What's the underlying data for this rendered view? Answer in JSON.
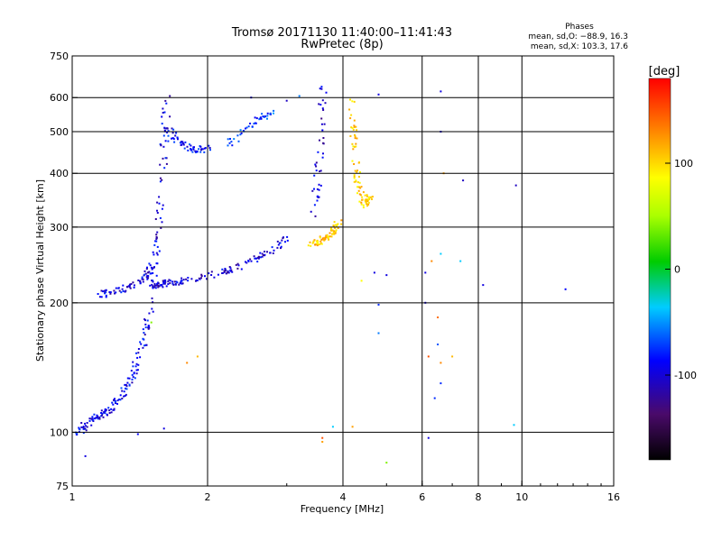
{
  "chart_data": {
    "type": "scatter",
    "title": "Tromsø 20171130 11:40:00–11:41:43",
    "subtitle": "RwPretec (8p)",
    "xlabel": "Frequency [MHz]",
    "ylabel": "Stationary phase Virtual Height [km]",
    "x_scale": "log",
    "y_scale": "log",
    "xlim": [
      1,
      16
    ],
    "ylim": [
      75,
      750
    ],
    "x_ticks": [
      1,
      2,
      4,
      6,
      8,
      10,
      16
    ],
    "y_ticks": [
      75,
      100,
      200,
      300,
      400,
      500,
      600,
      750
    ],
    "x_grid": [
      2,
      4,
      6,
      8,
      10
    ],
    "y_grid": [
      100,
      200,
      300,
      400,
      500,
      600
    ],
    "grid": true,
    "color_scale": {
      "label": "[deg]",
      "ticks": [
        100,
        0,
        -100
      ],
      "range": [
        -180,
        180
      ],
      "placement": "right"
    },
    "phase_stats": {
      "heading": "Phases",
      "line_o": "mean, sd,O: −88.9, 16.3",
      "line_x": "mean, sd,X: 103.3, 17.6"
    },
    "traces": [
      {
        "f": [
          1.5,
          1.55,
          1.6,
          1.7,
          1.8,
          2.0,
          2.2,
          2.4,
          2.6,
          2.8,
          3.0
        ],
        "h": [
          220,
          222,
          223,
          224,
          227,
          232,
          238,
          246,
          256,
          268,
          285
        ],
        "phase": -105
      },
      {
        "f": [
          1.02,
          1.05,
          1.1,
          1.15,
          1.2,
          1.25,
          1.3,
          1.35,
          1.4,
          1.45,
          1.48
        ],
        "h": [
          100,
          103,
          108,
          110,
          112,
          118,
          125,
          135,
          150,
          170,
          195
        ],
        "phase": -95
      },
      {
        "f": [
          1.15,
          1.2,
          1.3,
          1.4,
          1.45,
          1.5
        ],
        "h": [
          210,
          212,
          216,
          222,
          232,
          248
        ],
        "phase": -100
      },
      {
        "f": [
          1.5,
          1.52,
          1.55,
          1.58,
          1.6,
          1.62
        ],
        "h": [
          200,
          250,
          300,
          400,
          500,
          620
        ],
        "phase": -100
      },
      {
        "f": [
          1.6,
          1.7,
          1.8,
          1.9,
          2.0
        ],
        "h": [
          520,
          480,
          460,
          455,
          460
        ],
        "phase": -90
      },
      {
        "f": [
          2.2,
          2.4,
          2.6,
          2.8
        ],
        "h": [
          470,
          500,
          540,
          560
        ],
        "phase": -75
      },
      {
        "f": [
          3.45,
          3.5,
          3.55,
          3.6
        ],
        "h": [
          320,
          400,
          500,
          640
        ],
        "phase": -108
      },
      {
        "f": [
          3.4,
          3.5,
          3.6,
          3.7,
          3.8,
          3.9
        ],
        "h": [
          275,
          278,
          283,
          290,
          298,
          310
        ],
        "phase": 105
      },
      {
        "f": [
          4.15,
          4.2,
          4.25,
          4.3,
          4.4,
          4.5,
          4.6
        ],
        "h": [
          600,
          500,
          420,
          380,
          350,
          340,
          360
        ],
        "phase": 100
      }
    ],
    "scattered_points": [
      {
        "x": 4.8,
        "y": 610,
        "phase": -100
      },
      {
        "x": 6.6,
        "y": 620,
        "phase": -100
      },
      {
        "x": 6.6,
        "y": 500,
        "phase": -100
      },
      {
        "x": 6.7,
        "y": 400,
        "phase": 120
      },
      {
        "x": 7.4,
        "y": 385,
        "phase": -110
      },
      {
        "x": 9.7,
        "y": 375,
        "phase": -110
      },
      {
        "x": 6.6,
        "y": 260,
        "phase": -40
      },
      {
        "x": 6.3,
        "y": 250,
        "phase": 130
      },
      {
        "x": 7.3,
        "y": 250,
        "phase": -40
      },
      {
        "x": 6.1,
        "y": 235,
        "phase": -100
      },
      {
        "x": 4.7,
        "y": 235,
        "phase": -100
      },
      {
        "x": 5.0,
        "y": 232,
        "phase": -100
      },
      {
        "x": 8.2,
        "y": 220,
        "phase": -100
      },
      {
        "x": 12.5,
        "y": 215,
        "phase": -90
      },
      {
        "x": 4.4,
        "y": 225,
        "phase": 80
      },
      {
        "x": 6.1,
        "y": 200,
        "phase": -100
      },
      {
        "x": 4.8,
        "y": 198,
        "phase": -80
      },
      {
        "x": 6.5,
        "y": 185,
        "phase": 140
      },
      {
        "x": 4.8,
        "y": 170,
        "phase": -60
      },
      {
        "x": 6.5,
        "y": 160,
        "phase": -70
      },
      {
        "x": 6.2,
        "y": 150,
        "phase": 150
      },
      {
        "x": 6.6,
        "y": 145,
        "phase": 130
      },
      {
        "x": 7.0,
        "y": 150,
        "phase": 110
      },
      {
        "x": 6.6,
        "y": 130,
        "phase": -80
      },
      {
        "x": 6.4,
        "y": 120,
        "phase": -80
      },
      {
        "x": 4.2,
        "y": 103,
        "phase": 120
      },
      {
        "x": 3.8,
        "y": 103,
        "phase": -40
      },
      {
        "x": 9.6,
        "y": 104,
        "phase": -40
      },
      {
        "x": 6.2,
        "y": 97,
        "phase": -100
      },
      {
        "x": 3.6,
        "y": 97,
        "phase": 150
      },
      {
        "x": 3.6,
        "y": 95,
        "phase": 120
      },
      {
        "x": 5.0,
        "y": 85,
        "phase": 30
      },
      {
        "x": 1.07,
        "y": 88,
        "phase": -100
      },
      {
        "x": 1.9,
        "y": 150,
        "phase": 110
      },
      {
        "x": 1.8,
        "y": 145,
        "phase": 130
      },
      {
        "x": 1.5,
        "y": 180,
        "phase": 30
      },
      {
        "x": 1.6,
        "y": 102,
        "phase": -100
      },
      {
        "x": 1.4,
        "y": 99,
        "phase": -90
      },
      {
        "x": 3.2,
        "y": 605,
        "phase": -60
      },
      {
        "x": 3.0,
        "y": 590,
        "phase": -110
      },
      {
        "x": 2.5,
        "y": 600,
        "phase": -100
      }
    ]
  }
}
